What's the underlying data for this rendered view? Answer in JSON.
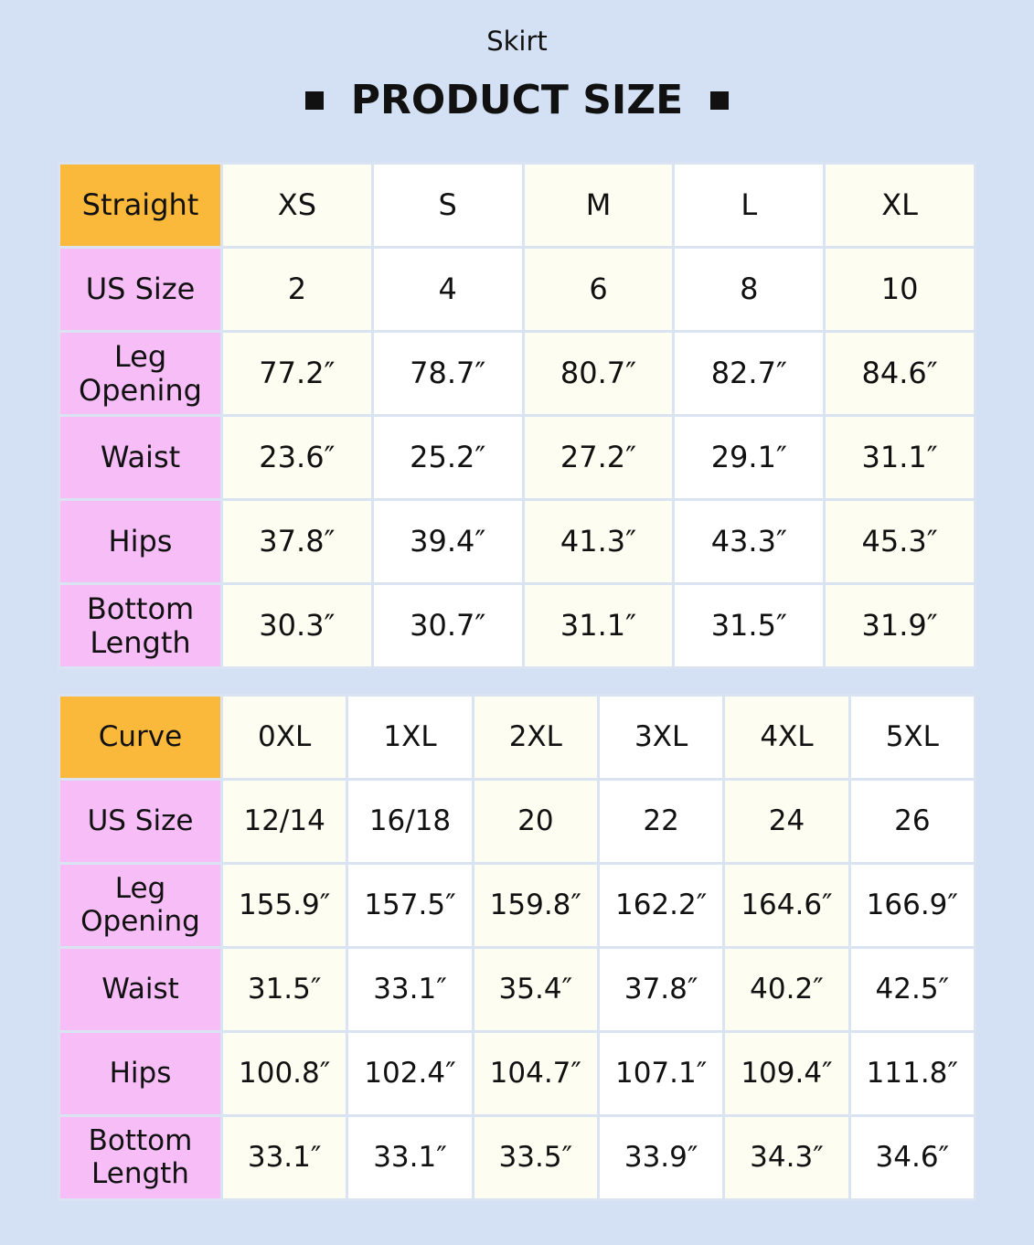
{
  "subtitle": "Skirt",
  "title": "PRODUCT SIZE",
  "colors": {
    "background": "#d4e0f3",
    "header_corner": "#fbb93b",
    "row_label": "#f7bdf7",
    "cell_cream": "#fdfdf2",
    "cell_white": "#ffffff"
  },
  "tables": [
    {
      "corner": "Straight",
      "sizes": [
        "XS",
        "S",
        "M",
        "L",
        "XL"
      ],
      "rows": [
        {
          "label": "US Size",
          "values": [
            "2",
            "4",
            "6",
            "8",
            "10"
          ]
        },
        {
          "label": "Leg Opening",
          "values": [
            "77.2″",
            "78.7″",
            "80.7″",
            "82.7″",
            "84.6″"
          ]
        },
        {
          "label": "Waist",
          "values": [
            "23.6″",
            "25.2″",
            "27.2″",
            "29.1″",
            "31.1″"
          ]
        },
        {
          "label": "Hips",
          "values": [
            "37.8″",
            "39.4″",
            "41.3″",
            "43.3″",
            "45.3″"
          ]
        },
        {
          "label": "Bottom Length",
          "values": [
            "30.3″",
            "30.7″",
            "31.1″",
            "31.5″",
            "31.9″"
          ]
        }
      ]
    },
    {
      "corner": "Curve",
      "sizes": [
        "0XL",
        "1XL",
        "2XL",
        "3XL",
        "4XL",
        "5XL"
      ],
      "rows": [
        {
          "label": "US Size",
          "values": [
            "12/14",
            "16/18",
            "20",
            "22",
            "24",
            "26"
          ]
        },
        {
          "label": "Leg Opening",
          "values": [
            "155.9″",
            "157.5″",
            "159.8″",
            "162.2″",
            "164.6″",
            "166.9″"
          ]
        },
        {
          "label": "Waist",
          "values": [
            "31.5″",
            "33.1″",
            "35.4″",
            "37.8″",
            "40.2″",
            "42.5″"
          ]
        },
        {
          "label": "Hips",
          "values": [
            "100.8″",
            "102.4″",
            "104.7″",
            "107.1″",
            "109.4″",
            "111.8″"
          ]
        },
        {
          "label": "Bottom Length",
          "values": [
            "33.1″",
            "33.1″",
            "33.5″",
            "33.9″",
            "34.3″",
            "34.6″"
          ]
        }
      ]
    }
  ]
}
